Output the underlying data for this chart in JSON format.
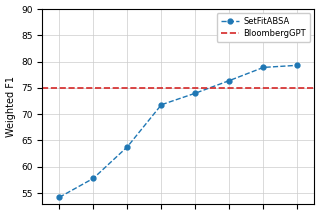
{
  "x_setfit": [
    1,
    2,
    3,
    4,
    5,
    6,
    7,
    8
  ],
  "y_setfit": [
    54.2,
    57.8,
    63.8,
    71.8,
    74.0,
    76.4,
    78.9,
    79.3
  ],
  "bloomberg_y": 75.0,
  "setfit_color": "#1f77b4",
  "bloomberg_color": "#d62728",
  "ylabel": "Weighted F1",
  "legend_setfit": "SetFitABSA",
  "legend_bloomberg": "BloombergGPT",
  "ylim": [
    53,
    90
  ],
  "yticks": [
    55,
    60,
    65,
    70,
    75,
    80,
    85,
    90
  ],
  "xlim": [
    0.5,
    8.5
  ],
  "xticks": [
    1,
    2,
    3,
    4,
    5,
    6,
    7,
    8
  ],
  "figsize": [
    3.2,
    2.14
  ],
  "dpi": 100
}
